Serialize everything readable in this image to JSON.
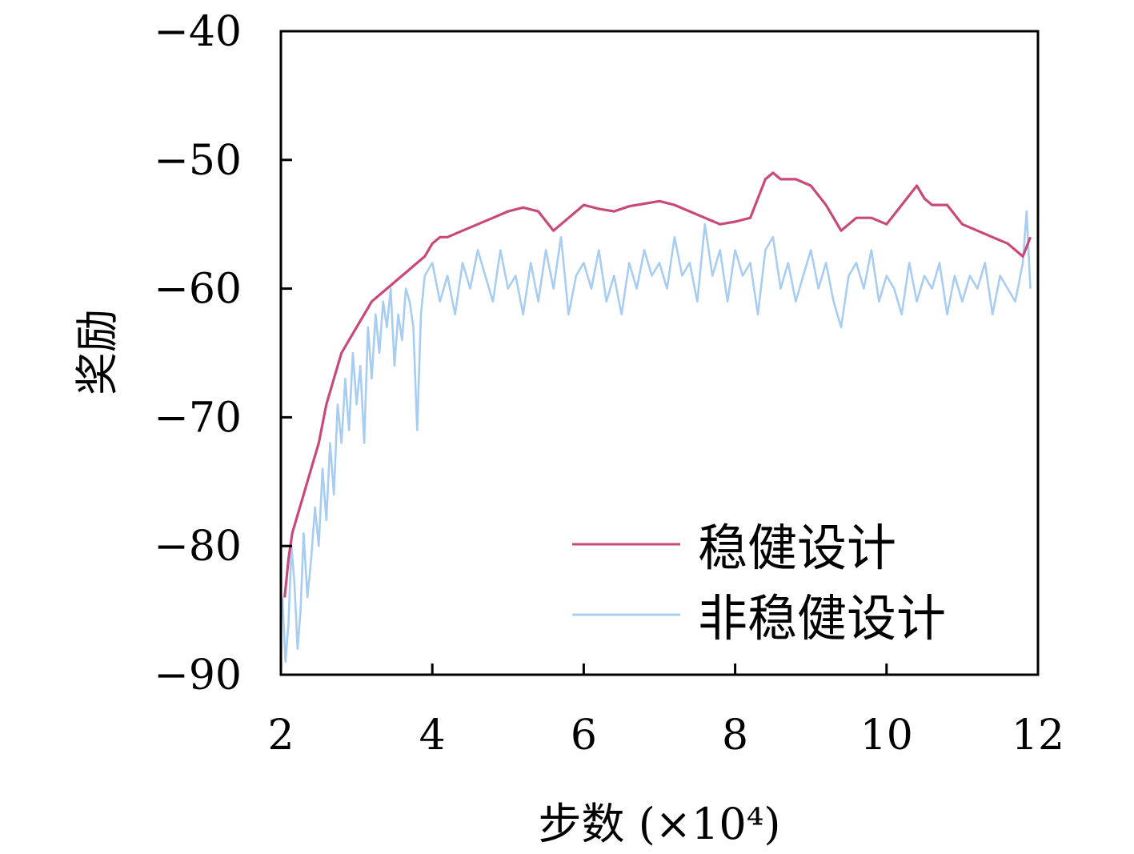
{
  "chart_data": {
    "type": "line",
    "xlabel": "步数 (×10⁴)",
    "ylabel": "奖励",
    "xlim": [
      2,
      12
    ],
    "ylim": [
      -90,
      -40
    ],
    "xticks": [
      2,
      4,
      6,
      8,
      10,
      12
    ],
    "yticks": [
      -90,
      -80,
      -70,
      -60,
      -50,
      -40
    ],
    "xtick_labels": [
      "2",
      "4",
      "6",
      "8",
      "10",
      "12"
    ],
    "ytick_labels": [
      "−90",
      "−80",
      "−70",
      "−60",
      "−50",
      "−40"
    ],
    "grid": false,
    "legend_position": "bottom-right",
    "series": [
      {
        "name": "稳健设计",
        "color": "#c94a7a",
        "x": [
          2.05,
          2.1,
          2.15,
          2.2,
          2.25,
          2.3,
          2.4,
          2.5,
          2.6,
          2.7,
          2.8,
          2.9,
          3.0,
          3.1,
          3.2,
          3.3,
          3.4,
          3.5,
          3.6,
          3.7,
          3.8,
          3.9,
          4.0,
          4.1,
          4.2,
          4.4,
          4.6,
          4.8,
          5.0,
          5.2,
          5.4,
          5.6,
          5.8,
          6.0,
          6.2,
          6.4,
          6.6,
          6.8,
          7.0,
          7.2,
          7.4,
          7.6,
          7.8,
          8.0,
          8.2,
          8.4,
          8.5,
          8.6,
          8.8,
          9.0,
          9.2,
          9.4,
          9.6,
          9.8,
          10.0,
          10.2,
          10.4,
          10.5,
          10.6,
          10.8,
          11.0,
          11.2,
          11.4,
          11.6,
          11.8,
          11.9
        ],
        "y": [
          -84,
          -81,
          -79,
          -78,
          -77,
          -76,
          -74,
          -72,
          -69,
          -67,
          -65,
          -64,
          -63,
          -62,
          -61,
          -60.5,
          -60,
          -59.5,
          -59,
          -58.5,
          -58,
          -57.5,
          -56.5,
          -56,
          -56,
          -55.5,
          -55,
          -54.5,
          -54,
          -53.7,
          -54,
          -55.5,
          -54.5,
          -53.5,
          -53.8,
          -54,
          -53.6,
          -53.4,
          -53.2,
          -53.5,
          -54,
          -54.5,
          -55,
          -54.8,
          -54.5,
          -51.5,
          -51,
          -51.5,
          -51.5,
          -52,
          -53.5,
          -55.5,
          -54.5,
          -54.5,
          -55,
          -53.5,
          -52,
          -53,
          -53.5,
          -53.5,
          -55,
          -55.5,
          -56,
          -56.5,
          -57.5,
          -56
        ]
      },
      {
        "name": "非稳健设计",
        "color": "#a8cdf2",
        "x": [
          2.02,
          2.06,
          2.1,
          2.14,
          2.18,
          2.22,
          2.26,
          2.3,
          2.35,
          2.4,
          2.45,
          2.5,
          2.55,
          2.6,
          2.65,
          2.7,
          2.75,
          2.8,
          2.85,
          2.9,
          2.95,
          3.0,
          3.05,
          3.1,
          3.15,
          3.2,
          3.25,
          3.3,
          3.35,
          3.4,
          3.45,
          3.5,
          3.55,
          3.6,
          3.65,
          3.7,
          3.75,
          3.8,
          3.85,
          3.9,
          4.0,
          4.1,
          4.2,
          4.3,
          4.4,
          4.5,
          4.6,
          4.7,
          4.8,
          4.9,
          5.0,
          5.1,
          5.2,
          5.3,
          5.4,
          5.5,
          5.6,
          5.7,
          5.8,
          5.9,
          6.0,
          6.1,
          6.2,
          6.3,
          6.4,
          6.5,
          6.6,
          6.7,
          6.8,
          6.9,
          7.0,
          7.1,
          7.2,
          7.3,
          7.4,
          7.5,
          7.6,
          7.7,
          7.8,
          7.9,
          8.0,
          8.1,
          8.2,
          8.3,
          8.4,
          8.5,
          8.6,
          8.7,
          8.8,
          8.9,
          9.0,
          9.1,
          9.2,
          9.3,
          9.4,
          9.5,
          9.6,
          9.7,
          9.8,
          9.9,
          10.0,
          10.1,
          10.2,
          10.3,
          10.4,
          10.5,
          10.6,
          10.7,
          10.8,
          10.9,
          11.0,
          11.1,
          11.2,
          11.3,
          11.4,
          11.5,
          11.6,
          11.7,
          11.8,
          11.85,
          11.9
        ],
        "y": [
          -84,
          -89,
          -86,
          -80,
          -83,
          -88,
          -85,
          -79,
          -84,
          -81,
          -77,
          -80,
          -74,
          -78,
          -72,
          -76,
          -69,
          -72,
          -67,
          -71,
          -65,
          -69,
          -66,
          -72,
          -63,
          -67,
          -62,
          -65,
          -61,
          -63,
          -60,
          -66,
          -62,
          -64,
          -60,
          -61,
          -63,
          -71,
          -62,
          -59,
          -58,
          -61,
          -59,
          -62,
          -58,
          -60,
          -57,
          -59,
          -61,
          -57,
          -60,
          -59,
          -62,
          -58,
          -61,
          -57,
          -60,
          -56,
          -62,
          -59,
          -58,
          -60,
          -57,
          -61,
          -59,
          -62,
          -58,
          -60,
          -57,
          -59,
          -58,
          -60,
          -56,
          -59,
          -58,
          -61,
          -55,
          -59,
          -57,
          -61,
          -57,
          -59,
          -58,
          -62,
          -57,
          -56,
          -60,
          -58,
          -61,
          -59,
          -57,
          -60,
          -58,
          -61,
          -63,
          -59,
          -58,
          -60,
          -57,
          -61,
          -59,
          -60,
          -62,
          -58,
          -61,
          -59,
          -60,
          -58,
          -62,
          -59,
          -61,
          -59,
          -60,
          -58,
          -62,
          -59,
          -60,
          -61,
          -58,
          -54,
          -60
        ]
      }
    ]
  }
}
